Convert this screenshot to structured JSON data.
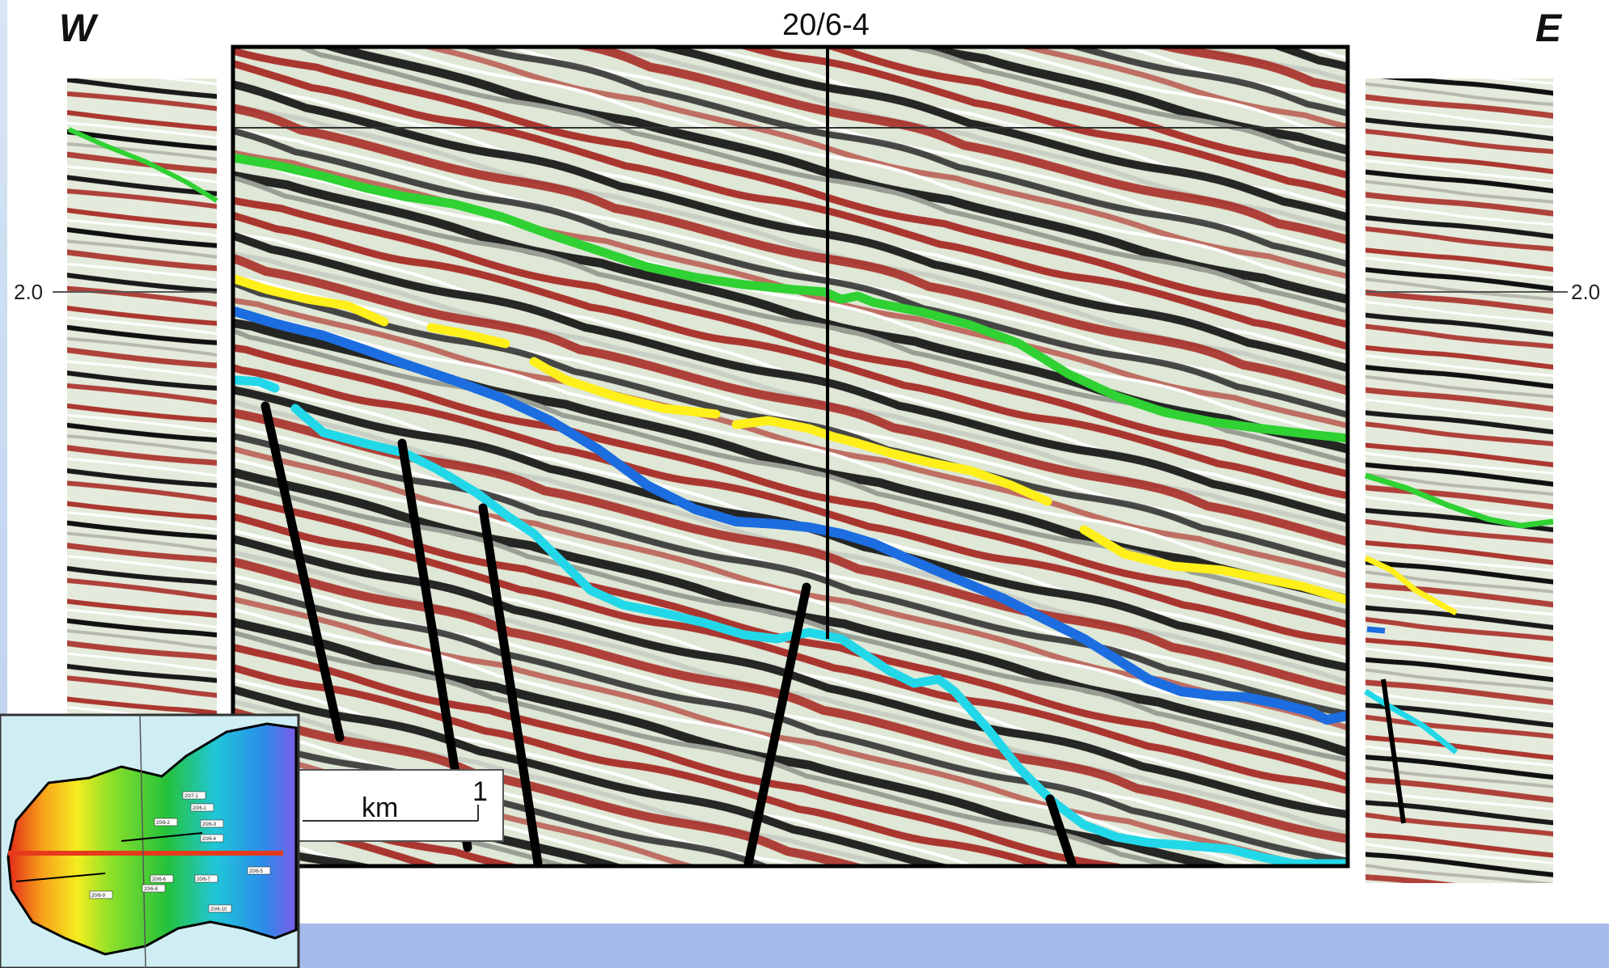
{
  "labels": {
    "west": "W",
    "east": "E",
    "well_name": "20/6-4",
    "time_left": "2.0",
    "time_right": "2.0",
    "scale_unit": "km",
    "scale_value": "1"
  },
  "colors": {
    "seismic_red": "#a01812",
    "seismic_black": "#111111",
    "seismic_light": "#dfe7d6",
    "horizon_green": "#2fd133",
    "horizon_yellow": "#ffef1a",
    "horizon_blue": "#1c6de0",
    "horizon_cyan": "#22d8e8",
    "fault": "#000000",
    "band": "#a7baec"
  },
  "inset_map": {
    "well_labels": [
      "20/7-1",
      "20/6-1",
      "20/6-2",
      "20/6-3",
      "20/6-4",
      "20/6-5",
      "20/6-6",
      "20/6-7",
      "20/6-8",
      "20/6-9",
      "20/6-10"
    ]
  }
}
